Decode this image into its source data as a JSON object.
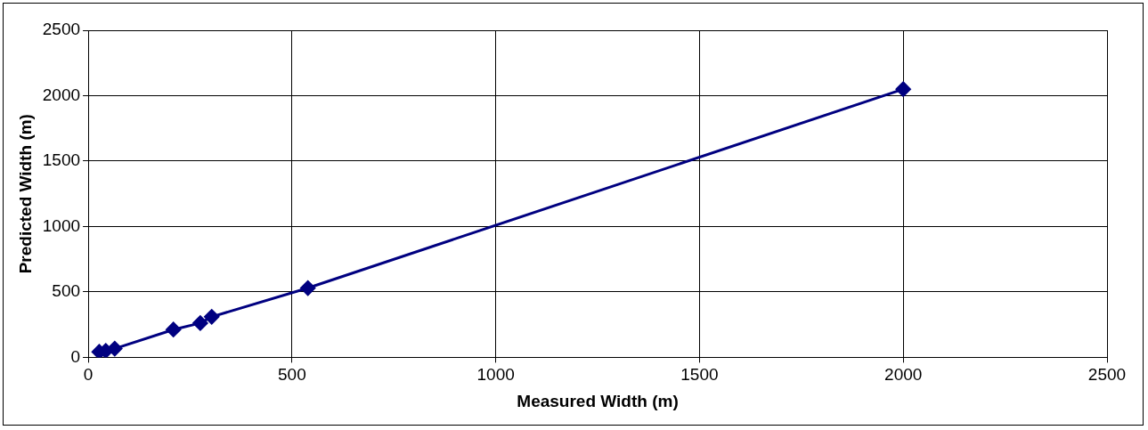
{
  "chart_data": {
    "type": "line",
    "xlabel": "Measured Width (m)",
    "ylabel": "Predicted Width (m)",
    "x": [
      27,
      43,
      65,
      209,
      275,
      303,
      539,
      2000
    ],
    "series": [
      {
        "color": "#000080",
        "values": [
          42,
          50,
          67,
          212,
          262,
          310,
          530,
          2050
        ]
      }
    ],
    "xlim": [
      0,
      2500
    ],
    "xticks": [
      0,
      500,
      1000,
      1500,
      2000,
      2500
    ],
    "ylim": [
      0,
      2500
    ],
    "yticks": [
      0,
      500,
      1000,
      1500,
      2000,
      2500
    ],
    "grid": true,
    "legend": false,
    "marker": "diamond",
    "line_style": "solid"
  }
}
